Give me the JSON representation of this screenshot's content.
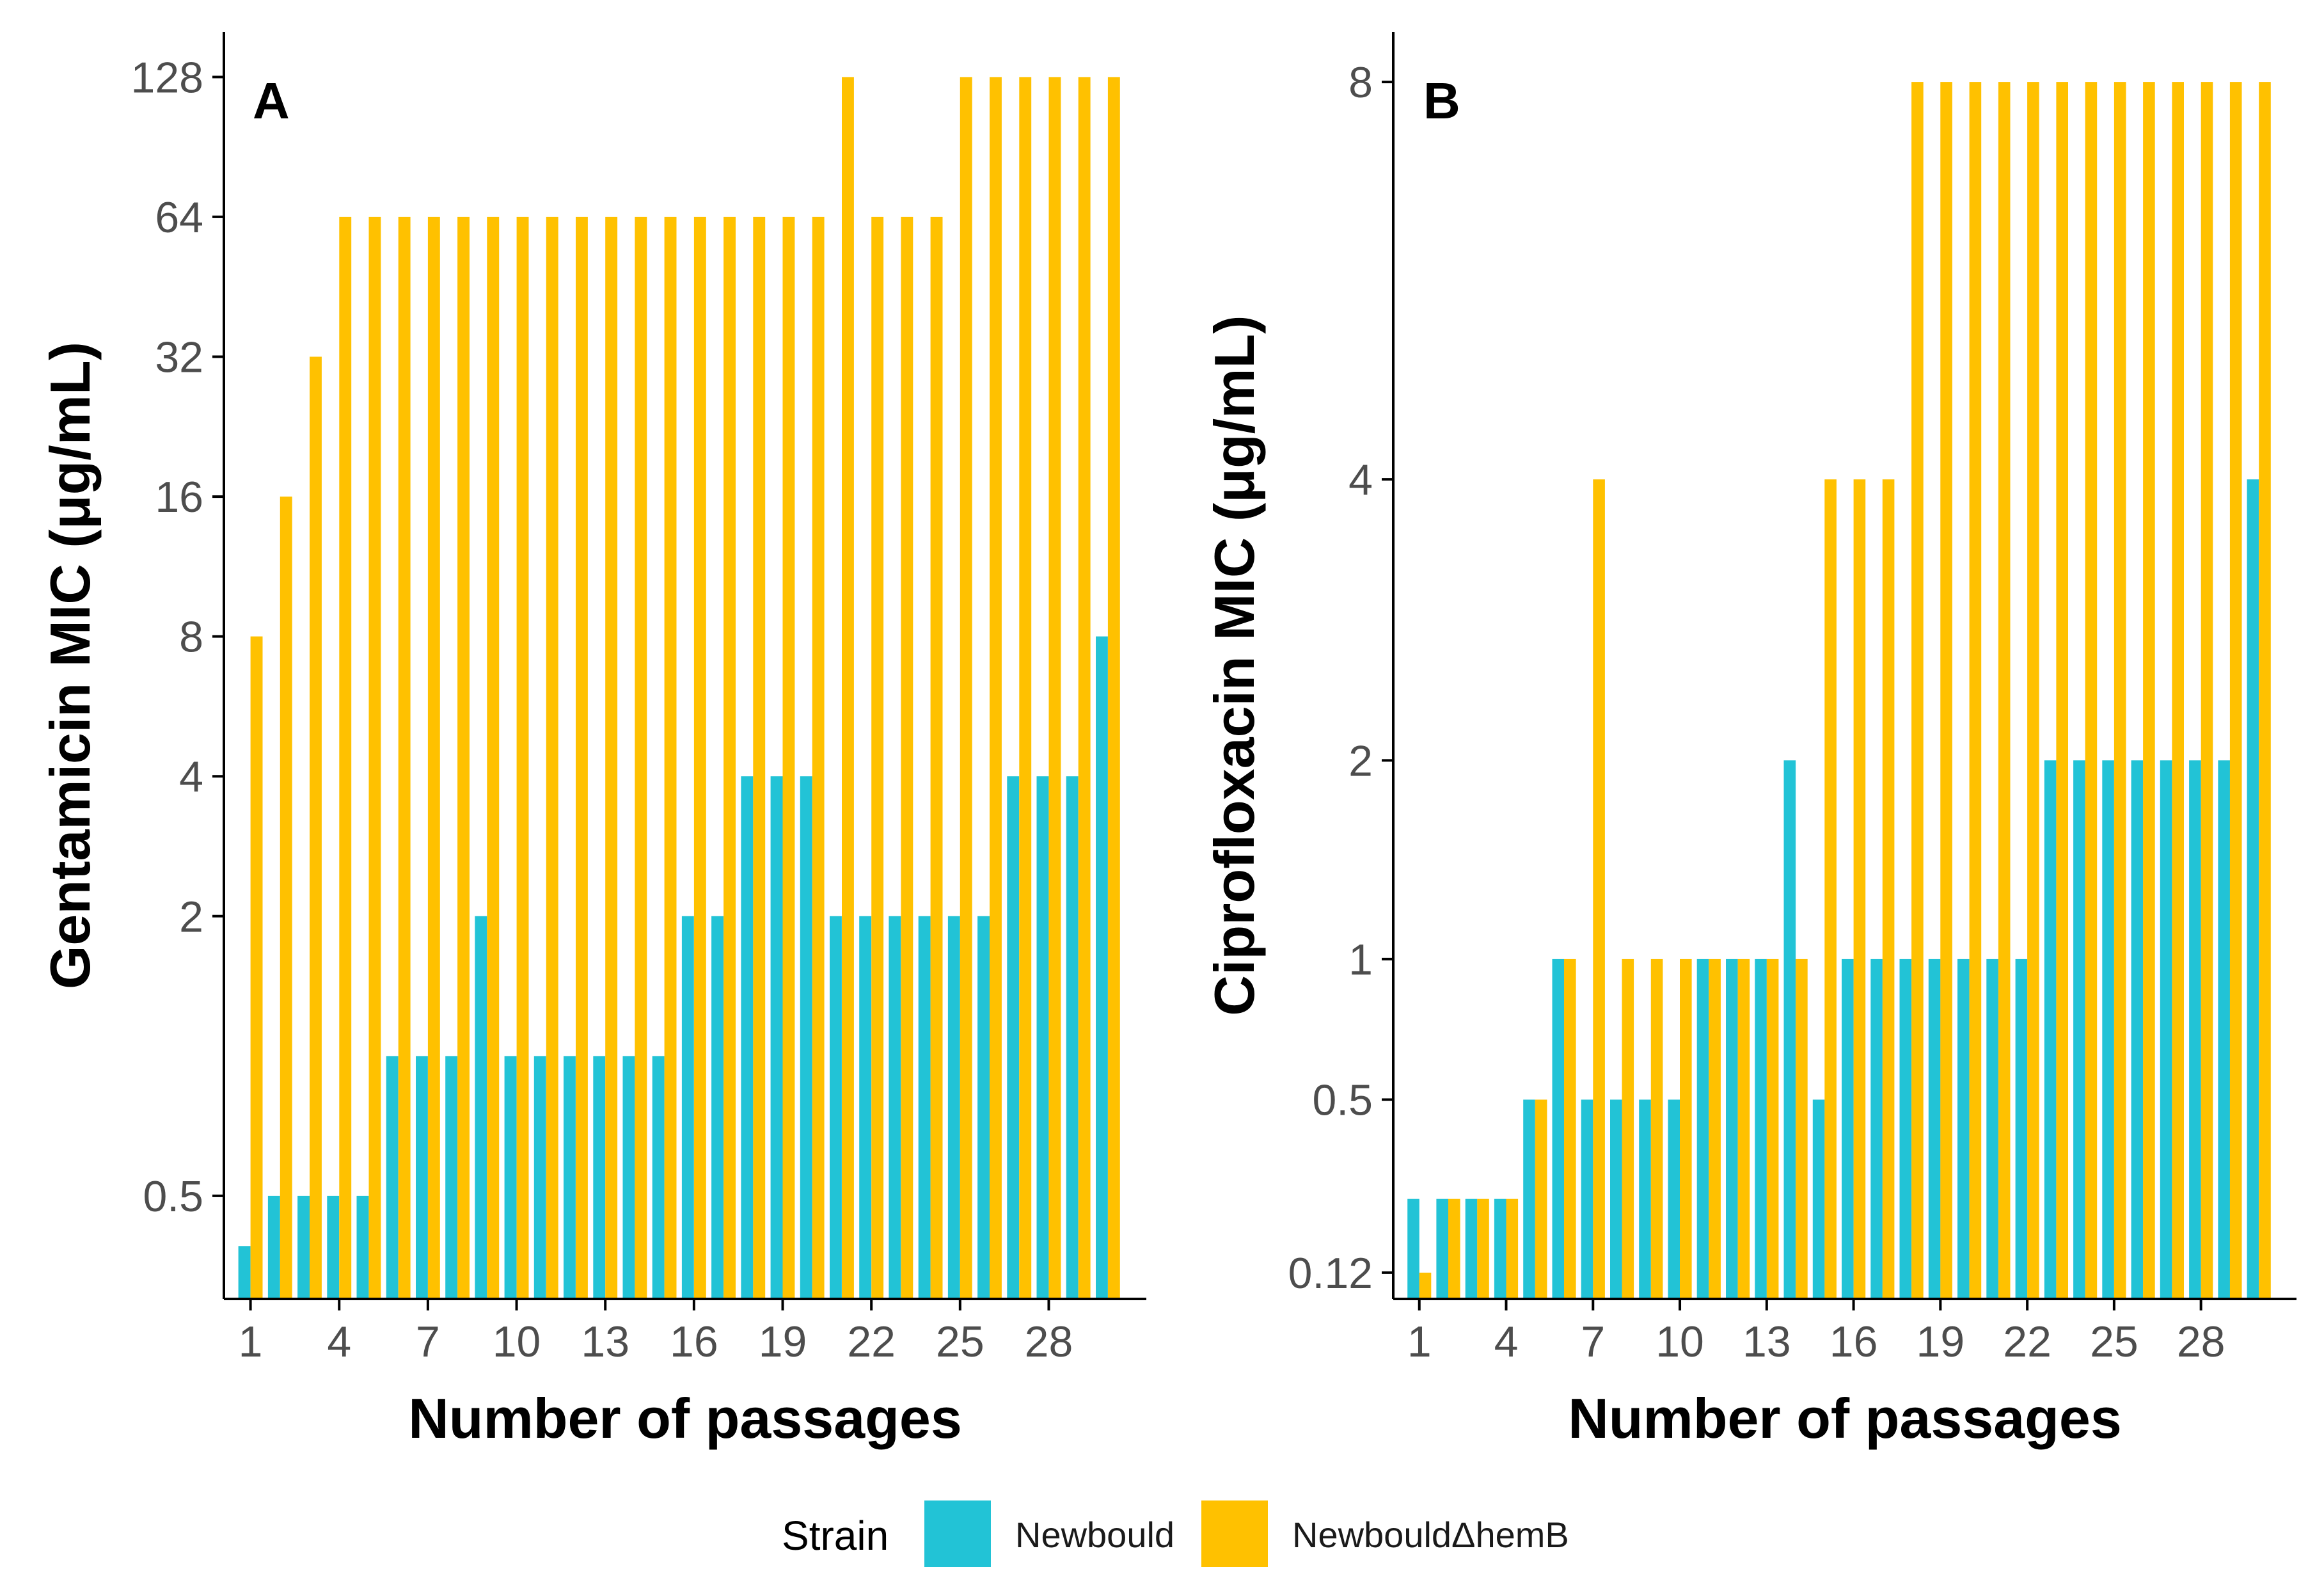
{
  "colors": {
    "newbould": "#22c3d6",
    "hemB": "#ffc100",
    "axis": "#000000"
  },
  "legend": {
    "title": "Strain",
    "items": [
      {
        "label": "Newbould",
        "color": "#22c3d6"
      },
      {
        "label": "NewbouldΔhemB",
        "color": "#ffc100"
      }
    ]
  },
  "chart_data": [
    {
      "type": "bar",
      "panel_label": "A",
      "xlabel": "Number of passages",
      "ylabel": "Gentamicin MIC (μg/mL)",
      "yscale": "log2",
      "ylim": [
        0.3,
        160
      ],
      "yticks": [
        0.5,
        2,
        4,
        8,
        16,
        32,
        64,
        128
      ],
      "xticks": [
        1,
        4,
        7,
        10,
        13,
        16,
        19,
        22,
        25,
        28
      ],
      "x": [
        1,
        2,
        3,
        4,
        5,
        6,
        7,
        8,
        9,
        10,
        11,
        12,
        13,
        14,
        15,
        16,
        17,
        18,
        19,
        20,
        21,
        22,
        23,
        24,
        25,
        26,
        27,
        28,
        29,
        30
      ],
      "series": [
        {
          "name": "Newbould",
          "values": [
            0.39,
            0.5,
            0.5,
            0.5,
            0.5,
            1,
            1,
            1,
            2,
            1,
            1,
            1,
            1,
            1,
            1,
            2,
            2,
            4,
            4,
            4,
            2,
            2,
            2,
            2,
            2,
            2,
            4,
            4,
            4,
            8
          ]
        },
        {
          "name": "NewbouldΔhemB",
          "values": [
            8,
            16,
            32,
            64,
            64,
            64,
            64,
            64,
            64,
            64,
            64,
            64,
            64,
            64,
            64,
            64,
            64,
            64,
            64,
            64,
            128,
            64,
            64,
            64,
            128,
            128,
            128,
            128,
            128,
            128
          ]
        }
      ]
    },
    {
      "type": "bar",
      "panel_label": "B",
      "xlabel": "Number of passages",
      "ylabel": "Ciprofloxacin MIC (μg/mL)",
      "yscale": "sqrt",
      "ylim": [
        0.085,
        8.6
      ],
      "yticks": [
        0.12,
        0.5,
        1,
        2,
        4,
        8
      ],
      "xticks": [
        1,
        4,
        7,
        10,
        13,
        16,
        19,
        22,
        25,
        28
      ],
      "x": [
        1,
        2,
        3,
        4,
        5,
        6,
        7,
        8,
        9,
        10,
        11,
        12,
        13,
        14,
        15,
        16,
        17,
        18,
        19,
        20,
        21,
        22,
        23,
        24,
        25,
        26,
        27,
        28,
        29,
        30
      ],
      "series": [
        {
          "name": "Newbould",
          "values": [
            0.25,
            0.25,
            0.25,
            0.25,
            0.5,
            1,
            0.5,
            0.5,
            0.5,
            0.5,
            1,
            1,
            1,
            2,
            0.5,
            1,
            1,
            1,
            1,
            1,
            1,
            1,
            2,
            2,
            2,
            2,
            2,
            2,
            2,
            4
          ]
        },
        {
          "name": "NewbouldΔhemB",
          "values": [
            0.12,
            0.25,
            0.25,
            0.25,
            0.5,
            1,
            4,
            1,
            1,
            1,
            1,
            1,
            1,
            1,
            4,
            4,
            4,
            8,
            8,
            8,
            8,
            8,
            8,
            8,
            8,
            8,
            8,
            8,
            8,
            8
          ]
        }
      ]
    }
  ]
}
